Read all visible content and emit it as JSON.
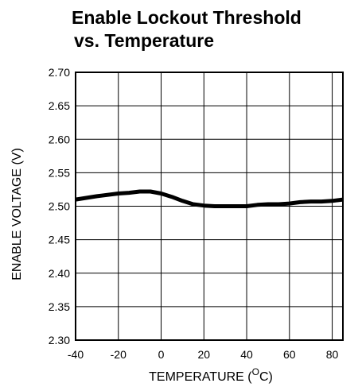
{
  "chart_data": {
    "type": "line",
    "title_lines": [
      "Enable Lockout Threshold",
      "vs. Temperature"
    ],
    "xlabel": "TEMPERATURE (",
    "xlabel_sup": "O",
    "xlabel_suffix": "C)",
    "ylabel": "ENABLE VOLTAGE (V)",
    "xlim": [
      -40,
      85
    ],
    "ylim": [
      2.3,
      2.7
    ],
    "x_ticks": [
      -40,
      -20,
      0,
      20,
      40,
      60,
      80
    ],
    "x_tick_labels": [
      "-40",
      "-20",
      "0",
      "20",
      "40",
      "60",
      "80"
    ],
    "y_ticks": [
      2.3,
      2.35,
      2.4,
      2.45,
      2.5,
      2.55,
      2.6,
      2.65,
      2.7
    ],
    "y_tick_labels": [
      "2.30",
      "2.35",
      "2.40",
      "2.45",
      "2.50",
      "2.55",
      "2.60",
      "2.65",
      "2.70"
    ],
    "grid": true,
    "series": [
      {
        "color": "#000000",
        "x": [
          -40,
          -30,
          -20,
          -15,
          -10,
          -5,
          0,
          5,
          10,
          15,
          20,
          25,
          30,
          35,
          40,
          45,
          50,
          55,
          60,
          65,
          70,
          75,
          80,
          85
        ],
        "y": [
          2.51,
          2.515,
          2.519,
          2.52,
          2.522,
          2.522,
          2.519,
          2.514,
          2.508,
          2.503,
          2.501,
          2.5,
          2.5,
          2.5,
          2.5,
          2.502,
          2.503,
          2.503,
          2.504,
          2.506,
          2.507,
          2.507,
          2.508,
          2.51
        ]
      }
    ]
  }
}
